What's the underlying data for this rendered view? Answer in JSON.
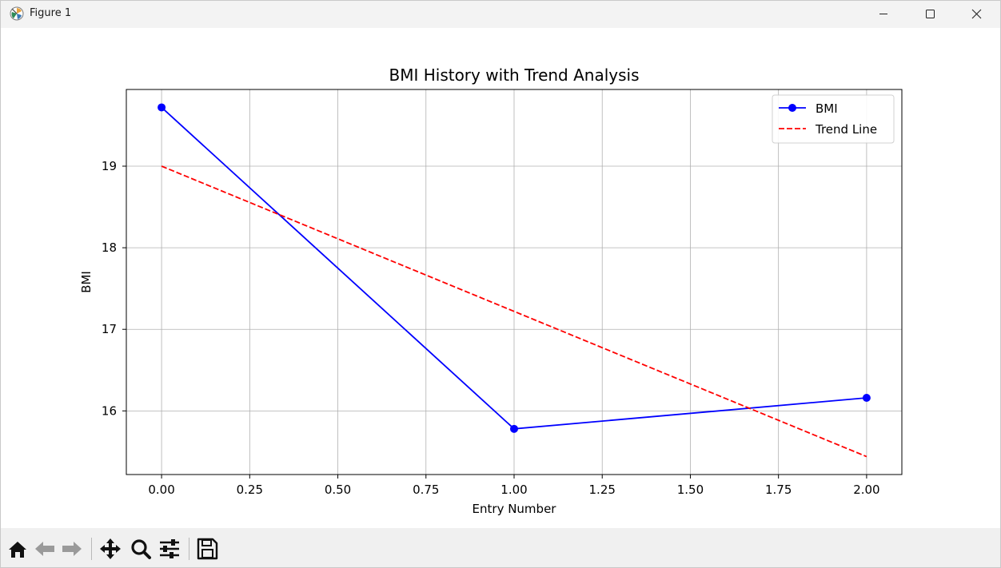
{
  "window": {
    "title": "Figure 1"
  },
  "toolbar": {
    "items": [
      {
        "name": "home-button",
        "icon": "home-icon"
      },
      {
        "name": "back-button",
        "icon": "arrow-left-icon"
      },
      {
        "name": "forward-button",
        "icon": "arrow-right-icon"
      },
      {
        "name": "pan-button",
        "icon": "move-icon"
      },
      {
        "name": "zoom-button",
        "icon": "magnifier-icon"
      },
      {
        "name": "configure-subplots-button",
        "icon": "sliders-icon"
      },
      {
        "name": "save-button",
        "icon": "floppy-disk-icon"
      }
    ]
  },
  "chart_data": {
    "type": "line",
    "title": "BMI History with Trend Analysis",
    "xlabel": "Entry Number",
    "ylabel": "BMI",
    "xlim": [
      -0.1,
      2.1
    ],
    "ylim": [
      15.22,
      19.94
    ],
    "x_ticks": [
      0.0,
      0.25,
      0.5,
      0.75,
      1.0,
      1.25,
      1.5,
      1.75,
      2.0
    ],
    "x_tick_labels": [
      "0.00",
      "0.25",
      "0.50",
      "0.75",
      "1.00",
      "1.25",
      "1.50",
      "1.75",
      "2.00"
    ],
    "y_ticks": [
      16,
      17,
      18,
      19
    ],
    "y_tick_labels": [
      "16",
      "17",
      "18",
      "19"
    ],
    "grid": true,
    "legend_position": "top-right",
    "series": [
      {
        "name": "BMI",
        "color": "#0000ff",
        "style": "solid",
        "marker": "circle",
        "x": [
          0,
          1,
          2
        ],
        "y": [
          19.72,
          15.78,
          16.16
        ]
      },
      {
        "name": "Trend Line",
        "color": "#ff0000",
        "style": "dashed",
        "marker": "none",
        "x": [
          0,
          2
        ],
        "y": [
          19.0,
          15.44
        ]
      }
    ]
  }
}
